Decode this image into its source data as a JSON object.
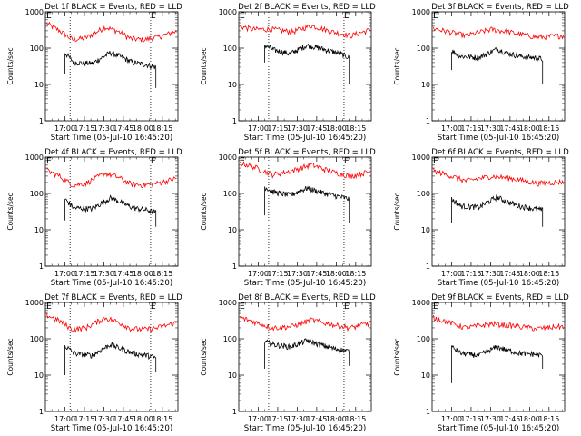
{
  "chart_data": [
    {
      "type": "line",
      "title": "Det 1f BLACK = Events, RED = LLD",
      "ylabel": "Counts/sec",
      "xlabel": "Start Time (05-Jul-10 16:45:20)",
      "x_ticks": [
        "17:00",
        "17:15",
        "17:30",
        "17:45",
        "18:00",
        "18:15"
      ],
      "y_ticks": [
        "1",
        "10",
        "100",
        "1000"
      ],
      "ylim": [
        1,
        1000
      ],
      "y_scale": "log",
      "xlim_minutes": [
        16.75,
        18.45
      ],
      "grid": false,
      "markers": [
        "E",
        "E"
      ],
      "dotted_lines": [
        "17:04",
        "18:06"
      ],
      "series": [
        {
          "color": "#ff0000",
          "start": "16:46",
          "end": "18:26",
          "knots": [
            [
              0,
              480
            ],
            [
              0.1,
              300
            ],
            [
              0.2,
              170
            ],
            [
              0.3,
              190
            ],
            [
              0.45,
              380
            ],
            [
              0.55,
              290
            ],
            [
              0.65,
              180
            ],
            [
              0.75,
              170
            ],
            [
              0.85,
              200
            ],
            [
              1,
              290
            ]
          ]
        },
        {
          "color": "#000000",
          "start": "17:00",
          "end": "18:10",
          "onset": 20,
          "end_drop": 8,
          "knots": [
            [
              0,
              75
            ],
            [
              0.1,
              40
            ],
            [
              0.3,
              38
            ],
            [
              0.5,
              75
            ],
            [
              0.6,
              60
            ],
            [
              0.75,
              40
            ],
            [
              0.9,
              35
            ],
            [
              1,
              30
            ]
          ]
        }
      ]
    },
    {
      "type": "line",
      "title": "Det 2f BLACK = Events, RED = LLD",
      "ylabel": "Counts/sec",
      "xlabel": "Start Time (05-Jul-10 16:45:20)",
      "x_ticks": [
        "17:00",
        "17:15",
        "17:30",
        "17:45",
        "18:00",
        "18:15"
      ],
      "y_ticks": [
        "1",
        "10",
        "100",
        "1000"
      ],
      "ylim": [
        1,
        1000
      ],
      "y_scale": "log",
      "xlim_minutes": [
        16.75,
        18.45
      ],
      "grid": false,
      "markers": [
        "E",
        "E"
      ],
      "dotted_lines": [
        "17:08",
        "18:06"
      ],
      "series": [
        {
          "color": "#ff0000",
          "start": "16:46",
          "end": "18:26",
          "knots": [
            [
              0,
              400
            ],
            [
              0.1,
              330
            ],
            [
              0.25,
              330
            ],
            [
              0.4,
              280
            ],
            [
              0.55,
              420
            ],
            [
              0.7,
              290
            ],
            [
              0.85,
              220
            ],
            [
              1,
              320
            ]
          ]
        },
        {
          "color": "#000000",
          "start": "17:05",
          "end": "18:10",
          "onset": 40,
          "end_drop": 10,
          "knots": [
            [
              0,
              120
            ],
            [
              0.1,
              90
            ],
            [
              0.3,
              70
            ],
            [
              0.5,
              120
            ],
            [
              0.65,
              100
            ],
            [
              0.8,
              80
            ],
            [
              0.9,
              70
            ],
            [
              1,
              55
            ]
          ]
        }
      ]
    },
    {
      "type": "line",
      "title": "Det 3f BLACK = Events, RED = LLD",
      "ylabel": "Counts/sec",
      "xlabel": "Start Time (05-Jul-10 16:45:20)",
      "x_ticks": [
        "17:00",
        "17:15",
        "17:30",
        "17:45",
        "18:00",
        "18:15"
      ],
      "y_ticks": [
        "1",
        "10",
        "100",
        "1000"
      ],
      "ylim": [
        1,
        1000
      ],
      "y_scale": "log",
      "xlim_minutes": [
        16.75,
        18.45
      ],
      "grid": false,
      "markers": [
        "E"
      ],
      "dotted_lines": [],
      "series": [
        {
          "color": "#ff0000",
          "start": "16:46",
          "end": "18:26",
          "knots": [
            [
              0,
              350
            ],
            [
              0.1,
              290
            ],
            [
              0.25,
              220
            ],
            [
              0.45,
              330
            ],
            [
              0.6,
              270
            ],
            [
              0.8,
              200
            ],
            [
              1,
              220
            ]
          ]
        },
        {
          "color": "#000000",
          "start": "17:00",
          "end": "18:10",
          "onset": 25,
          "end_drop": 10,
          "knots": [
            [
              0,
              85
            ],
            [
              0.1,
              60
            ],
            [
              0.3,
              55
            ],
            [
              0.5,
              95
            ],
            [
              0.6,
              75
            ],
            [
              0.75,
              60
            ],
            [
              0.9,
              55
            ],
            [
              1,
              50
            ]
          ]
        }
      ]
    },
    {
      "type": "line",
      "title": "Det 4f BLACK = Events, RED = LLD",
      "ylabel": "Counts/sec",
      "xlabel": "Start Time (05-Jul-10 16:45:20)",
      "x_ticks": [
        "17:00",
        "17:15",
        "17:30",
        "17:45",
        "18:00",
        "18:15"
      ],
      "y_ticks": [
        "1",
        "10",
        "100",
        "1000"
      ],
      "ylim": [
        1,
        1000
      ],
      "y_scale": "log",
      "xlim_minutes": [
        16.75,
        18.45
      ],
      "grid": false,
      "markers": [
        "E",
        "E"
      ],
      "dotted_lines": [
        "17:04",
        "18:06"
      ],
      "series": [
        {
          "color": "#ff0000",
          "start": "16:46",
          "end": "18:26",
          "knots": [
            [
              0,
              430
            ],
            [
              0.1,
              300
            ],
            [
              0.2,
              170
            ],
            [
              0.3,
              190
            ],
            [
              0.45,
              360
            ],
            [
              0.55,
              280
            ],
            [
              0.65,
              180
            ],
            [
              0.75,
              170
            ],
            [
              0.85,
              190
            ],
            [
              1,
              260
            ]
          ]
        },
        {
          "color": "#000000",
          "start": "17:00",
          "end": "18:10",
          "onset": 18,
          "end_drop": 12,
          "knots": [
            [
              0,
              70
            ],
            [
              0.1,
              40
            ],
            [
              0.3,
              38
            ],
            [
              0.5,
              75
            ],
            [
              0.6,
              60
            ],
            [
              0.75,
              40
            ],
            [
              0.9,
              35
            ],
            [
              1,
              30
            ]
          ]
        }
      ]
    },
    {
      "type": "line",
      "title": "Det 5f BLACK = Events, RED = LLD",
      "ylabel": "Counts/sec",
      "xlabel": "Start Time (05-Jul-10 16:45:20)",
      "x_ticks": [
        "17:00",
        "17:15",
        "17:30",
        "17:45",
        "18:00",
        "18:15"
      ],
      "y_ticks": [
        "1",
        "10",
        "100",
        "1000"
      ],
      "ylim": [
        1,
        1000
      ],
      "y_scale": "log",
      "xlim_minutes": [
        16.75,
        18.45
      ],
      "grid": false,
      "markers": [
        "E",
        "E"
      ],
      "dotted_lines": [
        "17:08",
        "18:06"
      ],
      "series": [
        {
          "color": "#ff0000",
          "start": "16:46",
          "end": "18:26",
          "knots": [
            [
              0,
              700
            ],
            [
              0.1,
              550
            ],
            [
              0.25,
              330
            ],
            [
              0.4,
              420
            ],
            [
              0.55,
              620
            ],
            [
              0.7,
              400
            ],
            [
              0.85,
              300
            ],
            [
              1,
              400
            ]
          ]
        },
        {
          "color": "#000000",
          "start": "17:05",
          "end": "18:10",
          "onset": 25,
          "end_drop": 15,
          "knots": [
            [
              0,
              150
            ],
            [
              0.1,
              110
            ],
            [
              0.3,
              90
            ],
            [
              0.5,
              140
            ],
            [
              0.65,
              110
            ],
            [
              0.8,
              90
            ],
            [
              0.9,
              80
            ],
            [
              1,
              70
            ]
          ]
        }
      ]
    },
    {
      "type": "line",
      "title": "Det 6f BLACK = Events, RED = LLD",
      "ylabel": "Counts/sec",
      "xlabel": "Start Time (05-Jul-10 16:45:20)",
      "x_ticks": [
        "17:00",
        "17:15",
        "17:30",
        "17:45",
        "18:00",
        "18:15"
      ],
      "y_ticks": [
        "1",
        "10",
        "100",
        "1000"
      ],
      "ylim": [
        1,
        1000
      ],
      "y_scale": "log",
      "xlim_minutes": [
        16.75,
        18.45
      ],
      "grid": false,
      "markers": [
        "E"
      ],
      "dotted_lines": [],
      "series": [
        {
          "color": "#ff0000",
          "start": "16:46",
          "end": "18:26",
          "knots": [
            [
              0,
              420
            ],
            [
              0.1,
              330
            ],
            [
              0.25,
              220
            ],
            [
              0.45,
              300
            ],
            [
              0.6,
              260
            ],
            [
              0.8,
              190
            ],
            [
              1,
              210
            ]
          ]
        },
        {
          "color": "#000000",
          "start": "17:00",
          "end": "18:10",
          "onset": 15,
          "end_drop": 12,
          "knots": [
            [
              0,
              70
            ],
            [
              0.1,
              45
            ],
            [
              0.3,
              42
            ],
            [
              0.5,
              80
            ],
            [
              0.6,
              60
            ],
            [
              0.75,
              45
            ],
            [
              0.9,
              38
            ],
            [
              1,
              35
            ]
          ]
        }
      ]
    },
    {
      "type": "line",
      "title": "Det 7f BLACK = Events, RED = LLD",
      "ylabel": "Counts/sec",
      "xlabel": "Start Time (05-Jul-10 16:45:20)",
      "x_ticks": [
        "17:00",
        "17:15",
        "17:30",
        "17:45",
        "18:00",
        "18:15"
      ],
      "y_ticks": [
        "1",
        "10",
        "100",
        "1000"
      ],
      "ylim": [
        1,
        1000
      ],
      "y_scale": "log",
      "xlim_minutes": [
        16.75,
        18.45
      ],
      "grid": false,
      "markers": [
        "E",
        "E"
      ],
      "dotted_lines": [
        "17:04",
        "18:06"
      ],
      "series": [
        {
          "color": "#ff0000",
          "start": "16:46",
          "end": "18:26",
          "knots": [
            [
              0,
              450
            ],
            [
              0.1,
              310
            ],
            [
              0.2,
              180
            ],
            [
              0.3,
              200
            ],
            [
              0.45,
              380
            ],
            [
              0.55,
              290
            ],
            [
              0.65,
              190
            ],
            [
              0.75,
              180
            ],
            [
              0.85,
              200
            ],
            [
              1,
              280
            ]
          ]
        },
        {
          "color": "#000000",
          "start": "17:00",
          "end": "18:10",
          "onset": 10,
          "end_drop": 12,
          "knots": [
            [
              0,
              65
            ],
            [
              0.1,
              40
            ],
            [
              0.3,
              35
            ],
            [
              0.5,
              70
            ],
            [
              0.6,
              55
            ],
            [
              0.75,
              40
            ],
            [
              0.9,
              35
            ],
            [
              1,
              30
            ]
          ]
        }
      ]
    },
    {
      "type": "line",
      "title": "Det 8f BLACK = Events, RED = LLD",
      "ylabel": "Counts/sec",
      "xlabel": "Start Time (05-Jul-10 16:45:20)",
      "x_ticks": [
        "17:00",
        "17:15",
        "17:30",
        "17:45",
        "18:00",
        "18:15"
      ],
      "y_ticks": [
        "1",
        "10",
        "100",
        "1000"
      ],
      "ylim": [
        1,
        1000
      ],
      "y_scale": "log",
      "xlim_minutes": [
        16.75,
        18.45
      ],
      "grid": false,
      "markers": [
        "E",
        "E"
      ],
      "dotted_lines": [
        "17:08",
        "18:06"
      ],
      "series": [
        {
          "color": "#ff0000",
          "start": "16:46",
          "end": "18:26",
          "knots": [
            [
              0,
              380
            ],
            [
              0.1,
              300
            ],
            [
              0.25,
              200
            ],
            [
              0.4,
              220
            ],
            [
              0.55,
              330
            ],
            [
              0.7,
              250
            ],
            [
              0.85,
              200
            ],
            [
              1,
              270
            ]
          ]
        },
        {
          "color": "#000000",
          "start": "17:05",
          "end": "18:10",
          "onset": 15,
          "end_drop": 18,
          "knots": [
            [
              0,
              85
            ],
            [
              0.1,
              70
            ],
            [
              0.3,
              60
            ],
            [
              0.5,
              90
            ],
            [
              0.65,
              70
            ],
            [
              0.8,
              55
            ],
            [
              0.9,
              50
            ],
            [
              1,
              45
            ]
          ]
        }
      ]
    },
    {
      "type": "line",
      "title": "Det 9f BLACK = Events, RED = LLD",
      "ylabel": "Counts/sec",
      "xlabel": "Start Time (05-Jul-10 16:45:20)",
      "x_ticks": [
        "17:00",
        "17:15",
        "17:30",
        "17:45",
        "18:00",
        "18:15"
      ],
      "y_ticks": [
        "1",
        "10",
        "100",
        "1000"
      ],
      "ylim": [
        1,
        1000
      ],
      "y_scale": "log",
      "xlim_minutes": [
        16.75,
        18.45
      ],
      "grid": false,
      "markers": [
        "E"
      ],
      "dotted_lines": [],
      "series": [
        {
          "color": "#ff0000",
          "start": "16:46",
          "end": "18:26",
          "knots": [
            [
              0,
              380
            ],
            [
              0.1,
              300
            ],
            [
              0.25,
              200
            ],
            [
              0.45,
              260
            ],
            [
              0.6,
              230
            ],
            [
              0.8,
              190
            ],
            [
              1,
              220
            ]
          ]
        },
        {
          "color": "#000000",
          "start": "17:00",
          "end": "18:10",
          "onset": 6,
          "end_drop": 15,
          "knots": [
            [
              0,
              60
            ],
            [
              0.1,
              40
            ],
            [
              0.3,
              35
            ],
            [
              0.5,
              60
            ],
            [
              0.6,
              50
            ],
            [
              0.75,
              40
            ],
            [
              0.9,
              38
            ],
            [
              1,
              35
            ]
          ]
        }
      ]
    }
  ]
}
